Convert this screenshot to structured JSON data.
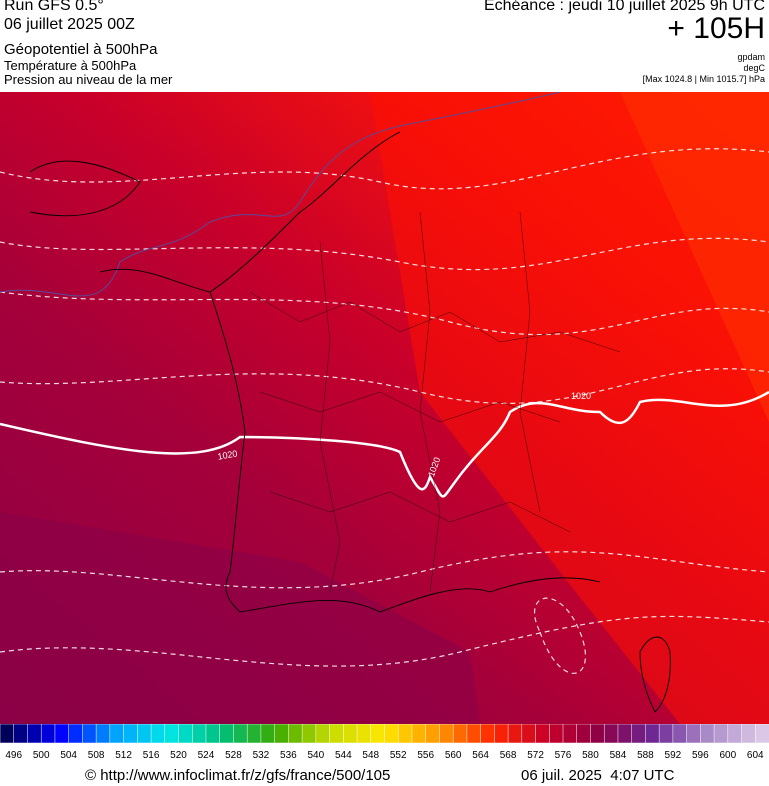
{
  "header": {
    "run": "Run GFS 0.5°",
    "date": "06 juillet 2025 00Z",
    "field1": "Géopotentiel à 500hPa",
    "field2": "Température à 500hPa",
    "field3": "Pression au niveau de la mer",
    "valid": "Echéance : jeudi 10 juillet 2025 9h UTC",
    "lead": "+ 105H",
    "unit1": "gpdam",
    "unit2": "degC",
    "range": "[Max 1024.8 | Min 1015.7] hPa"
  },
  "contour_labels": [
    "1020",
    "1020",
    "1020"
  ],
  "colorbar": {
    "labels": [
      496,
      500,
      504,
      508,
      512,
      516,
      520,
      524,
      528,
      532,
      536,
      540,
      544,
      548,
      552,
      556,
      560,
      564,
      568,
      572,
      576,
      580,
      584,
      588,
      592,
      596,
      600,
      604
    ]
  },
  "footer": {
    "url": "© http://www.infoclimat.fr/z/gfs/france/500/105",
    "stamp": "06 juil. 2025  4:07 UTC"
  }
}
